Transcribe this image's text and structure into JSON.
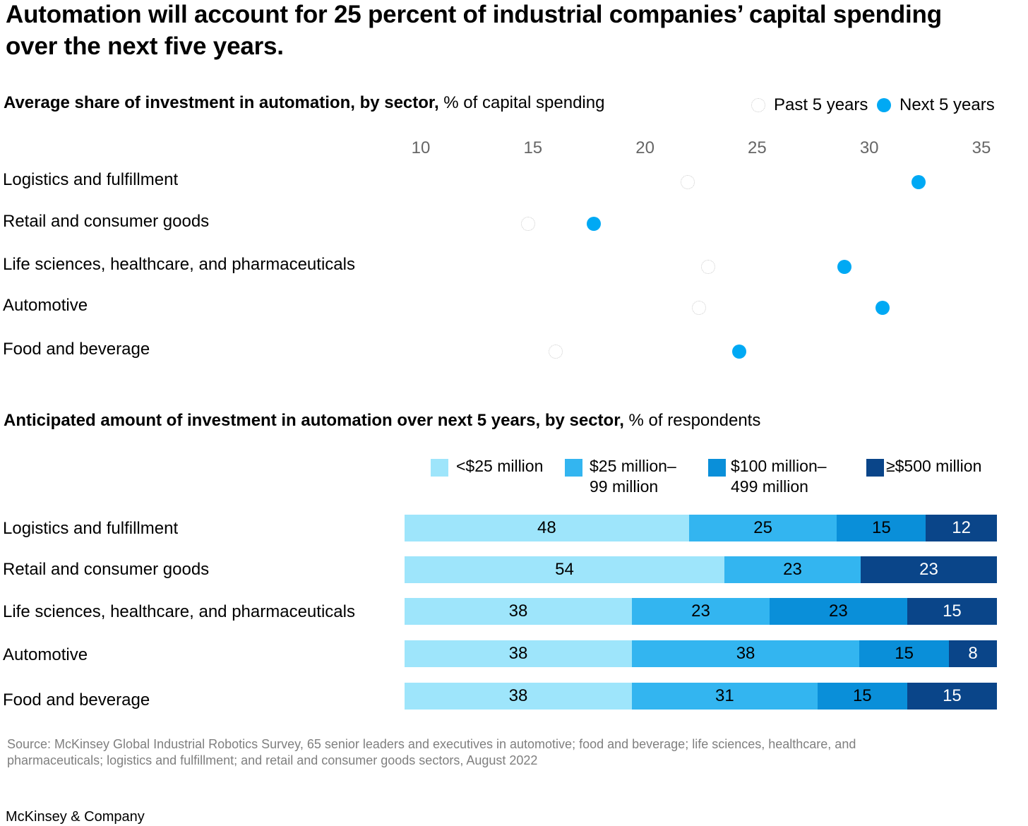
{
  "title": "Automation will account for 25 percent of industrial companies’ capital spending over the next five years.",
  "section1": {
    "heading_bold": "Average share of investment in automation, by sector,",
    "heading_rest": " % of capital spending",
    "legend": {
      "past": "Past 5 years",
      "next": "Next 5 years"
    }
  },
  "section2": {
    "heading_bold": "Anticipated amount of investment in automation over next 5 years, by sector,",
    "heading_rest": " % of respondents",
    "legend": [
      "<$25 million",
      "$25 million–\n99 million",
      "$100 million–\n499 million",
      "≥$500 million"
    ]
  },
  "colors": {
    "past_dot": "#ffffff",
    "next_dot": "#00a9f4",
    "bucket_1": "#9ee5fb",
    "bucket_2": "#33b5f0",
    "bucket_3": "#0a8fd9",
    "bucket_4": "#0a4589"
  },
  "chart_data": [
    {
      "type": "scatter",
      "x_ticks": [
        10,
        15,
        20,
        25,
        30,
        35
      ],
      "xlim": [
        10,
        35
      ],
      "categories": [
        "Logistics and fulfillment",
        "Retail and consumer goods",
        "Life sciences, healthcare, and pharmaceuticals",
        "Automotive",
        "Food and beverage"
      ],
      "series": [
        {
          "name": "Past 5 years",
          "values": [
            21.9,
            14.8,
            22.8,
            22.4,
            16.0
          ]
        },
        {
          "name": "Next 5 years",
          "values": [
            32.2,
            17.7,
            28.9,
            30.6,
            24.2
          ]
        }
      ]
    },
    {
      "type": "bar",
      "stacked": true,
      "orientation": "horizontal",
      "categories": [
        "Logistics and fulfillment",
        "Retail and consumer goods",
        "Life sciences, healthcare, and pharmaceuticals",
        "Automotive",
        "Food and beverage"
      ],
      "series": [
        {
          "name": "<$25 million",
          "values": [
            48,
            54,
            38,
            38,
            38
          ]
        },
        {
          "name": "$25 million–99 million",
          "values": [
            25,
            23,
            23,
            38,
            31
          ]
        },
        {
          "name": "$100 million–499 million",
          "values": [
            15,
            0,
            23,
            15,
            15
          ]
        },
        {
          "name": "≥$500 million",
          "values": [
            12,
            23,
            15,
            8,
            15
          ]
        }
      ]
    }
  ],
  "source": "Source: McKinsey Global Industrial Robotics Survey, 65 senior leaders and executives in automotive; food and beverage; life sciences, healthcare, and pharmaceuticals; logistics and fulfillment; and retail and consumer goods sectors, August 2022",
  "brand": "McKinsey & Company"
}
